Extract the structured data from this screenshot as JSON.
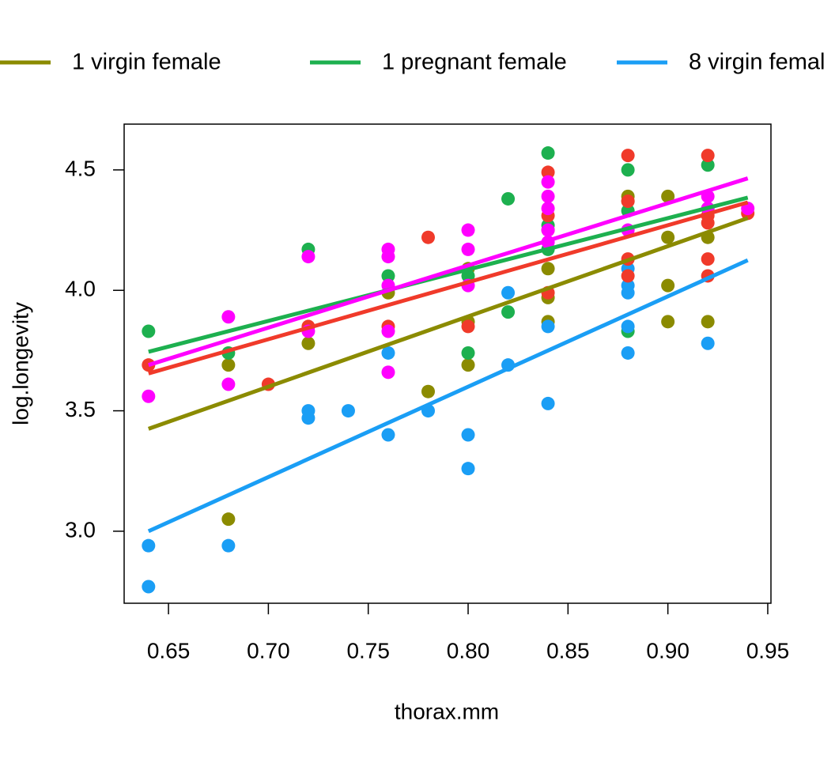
{
  "chart_data": {
    "type": "scatter",
    "x_label": "thorax.mm",
    "y_label": "log.longevity",
    "xlim": [
      0.6278,
      0.9516
    ],
    "ylim": [
      2.701,
      4.69
    ],
    "xticks": [
      {
        "value": 0.65,
        "label": "0.65"
      },
      {
        "value": 0.7,
        "label": "0.70"
      },
      {
        "value": 0.75,
        "label": "0.75"
      },
      {
        "value": 0.8,
        "label": "0.80"
      },
      {
        "value": 0.85,
        "label": "0.85"
      },
      {
        "value": 0.9,
        "label": "0.90"
      },
      {
        "value": 0.95,
        "label": "0.95"
      }
    ],
    "yticks": [
      {
        "value": 3,
        "label": "3.0"
      },
      3.5,
      {
        "value": 4,
        "label": "4.0"
      },
      4.5
    ],
    "legend": "top",
    "series": [
      {
        "name": "1 virgin female",
        "color": "#8b8b00",
        "x": [
          0.68,
          0.68,
          0.72,
          0.76,
          0.78,
          0.8,
          0.8,
          0.8,
          0.84,
          0.84,
          0.84,
          0.88,
          0.88,
          0.9,
          0.9,
          0.9,
          0.9,
          0.92,
          0.92
        ],
        "values": [
          3.05,
          3.69,
          3.78,
          3.99,
          3.58,
          3.69,
          3.87,
          4.09,
          3.87,
          3.97,
          4.09,
          4.39,
          4.37,
          3.87,
          4.02,
          4.22,
          4.39,
          3.87,
          4.22
        ],
        "fit_x": [
          0.64,
          0.94
        ],
        "fit_y": [
          3.425,
          4.3
        ]
      },
      {
        "name": "1 pregnant female",
        "color": "#1db04f",
        "x": [
          0.64,
          0.68,
          0.72,
          0.76,
          0.8,
          0.8,
          0.82,
          0.82,
          0.84,
          0.84,
          0.84,
          0.88,
          0.88,
          0.88,
          0.92,
          0.92
        ],
        "values": [
          3.83,
          3.74,
          4.17,
          4.06,
          3.74,
          4.06,
          3.91,
          4.38,
          4.57,
          4.27,
          4.17,
          4.5,
          4.33,
          3.83,
          4.52,
          4.34
        ],
        "fit_x": [
          0.64,
          0.94
        ],
        "fit_y": [
          3.745,
          4.385
        ]
      },
      {
        "name": "8 virgin femal",
        "color": "#1a9ef5",
        "x": [
          0.64,
          0.64,
          0.68,
          0.72,
          0.72,
          0.74,
          0.76,
          0.76,
          0.78,
          0.8,
          0.8,
          0.82,
          0.82,
          0.84,
          0.84,
          0.88,
          0.88,
          0.88,
          0.88,
          0.88,
          0.92
        ],
        "values": [
          2.94,
          2.77,
          2.94,
          3.47,
          3.5,
          3.5,
          3.4,
          3.74,
          3.5,
          3.26,
          3.4,
          3.69,
          3.99,
          3.53,
          3.85,
          3.74,
          3.85,
          3.99,
          4.02,
          4.09,
          3.78
        ],
        "fit_x": [
          0.64,
          0.94
        ],
        "fit_y": [
          3.0,
          4.125
        ]
      },
      {
        "color": "#f03a2a",
        "x": [
          0.64,
          0.7,
          0.72,
          0.76,
          0.78,
          0.8,
          0.84,
          0.84,
          0.84,
          0.84,
          0.88,
          0.88,
          0.88,
          0.88,
          0.92,
          0.92,
          0.92,
          0.92,
          0.92,
          0.94
        ],
        "values": [
          3.69,
          3.61,
          3.85,
          3.85,
          4.22,
          3.85,
          4.49,
          4.31,
          3.99,
          4.25,
          4.56,
          4.37,
          4.13,
          4.06,
          4.56,
          4.13,
          4.06,
          4.28,
          4.31,
          4.32
        ],
        "fit_x": [
          0.64,
          0.94
        ],
        "fit_y": [
          3.655,
          4.365
        ]
      },
      {
        "color": "#ff00ff",
        "x": [
          0.64,
          0.68,
          0.68,
          0.72,
          0.72,
          0.76,
          0.76,
          0.76,
          0.76,
          0.76,
          0.8,
          0.8,
          0.8,
          0.84,
          0.84,
          0.84,
          0.84,
          0.84,
          0.88,
          0.92,
          0.92,
          0.94
        ],
        "values": [
          3.56,
          3.89,
          3.61,
          4.14,
          3.83,
          4.17,
          4.14,
          4.02,
          3.83,
          3.66,
          4.25,
          4.17,
          4.02,
          4.45,
          4.39,
          4.34,
          4.25,
          4.2,
          4.25,
          4.39,
          4.34,
          4.34
        ],
        "fit_x": [
          0.64,
          0.94
        ],
        "fit_y": [
          3.69,
          4.465
        ]
      }
    ]
  }
}
